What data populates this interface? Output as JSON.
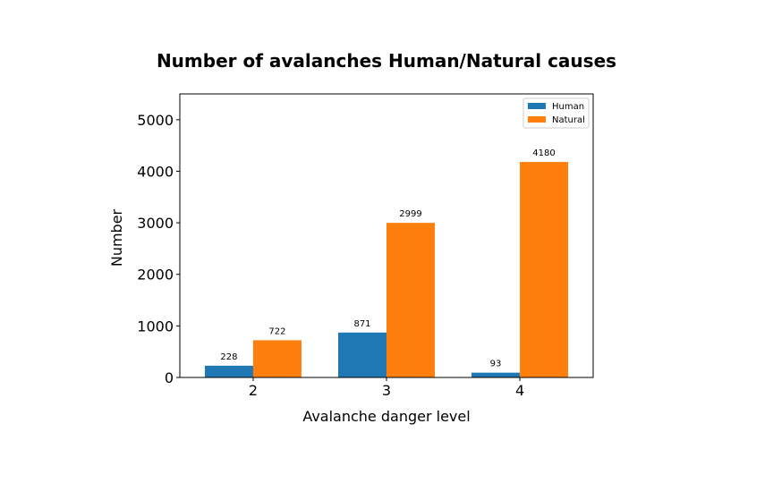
{
  "chart_data": {
    "type": "bar",
    "title": "Number of avalanches Human/Natural causes",
    "xlabel": "Avalanche danger level",
    "ylabel": "Number",
    "categories": [
      "2",
      "3",
      "4"
    ],
    "series": [
      {
        "name": "Human",
        "values": [
          228,
          871,
          93
        ],
        "color": "#1f77b4"
      },
      {
        "name": "Natural",
        "values": [
          722,
          2999,
          4180
        ],
        "color": "#ff7f0e"
      }
    ],
    "ylim": [
      0,
      5500
    ],
    "yticks": [
      0,
      1000,
      2000,
      3000,
      4000,
      5000
    ],
    "grid": false,
    "legend_position": "top-right",
    "data_labels": true
  }
}
